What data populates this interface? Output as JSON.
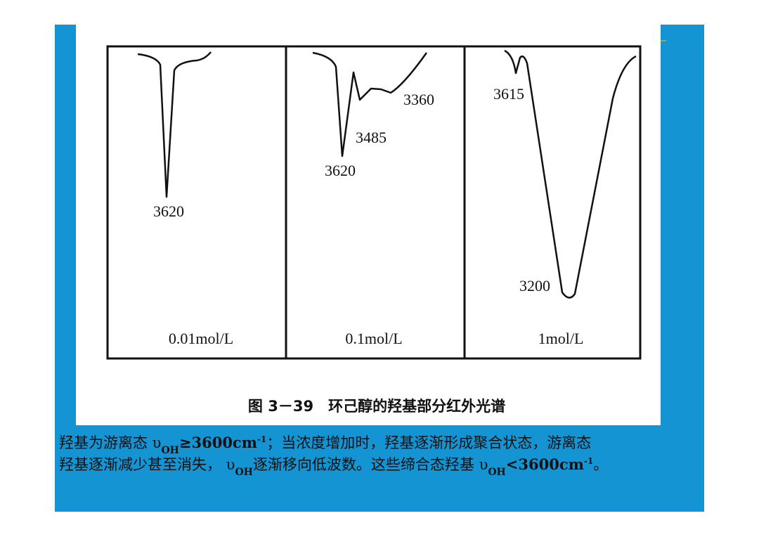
{
  "figure": {
    "panels": [
      {
        "label": "0.01mol/L",
        "peaks": [
          3620
        ]
      },
      {
        "label": "0.1mol/L",
        "peaks": [
          3620,
          3485,
          3360
        ]
      },
      {
        "label": "1mol/L",
        "peaks": [
          3615,
          3200
        ]
      }
    ],
    "caption": "图 3－39　环己醇的羟基部分红外光谱"
  },
  "text": {
    "line1": [
      "羟基为游离态 υ",
      "OH",
      "≥3600cm",
      "-1",
      "；当浓度增加时，羟基逐渐形成聚合状态，游离态"
    ],
    "line2": [
      "羟基逐渐减少甚至消失， υ",
      "OH",
      "逐渐移向低波数。这些缔合态羟基 υ",
      "OH",
      "<3600cm",
      "-1",
      "。"
    ]
  }
}
